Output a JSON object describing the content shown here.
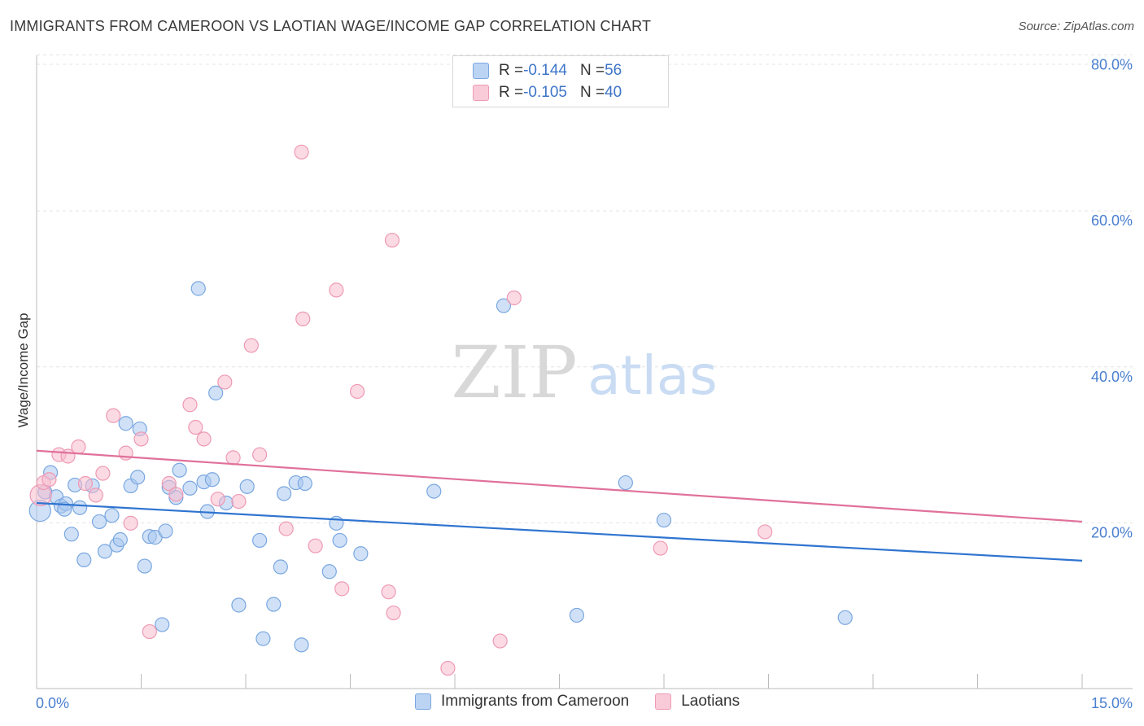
{
  "header": {
    "title": "IMMIGRANTS FROM CAMEROON VS LAOTIAN WAGE/INCOME GAP CORRELATION CHART",
    "source": "Source: ZipAtlas.com"
  },
  "legend": {
    "row1": {
      "r_label": "R = ",
      "r_value": "-0.144",
      "n_label": "N = ",
      "n_value": "56"
    },
    "row2": {
      "r_label": "R = ",
      "r_value": "-0.105",
      "n_label": "N = ",
      "n_value": "40"
    }
  },
  "bottom_legend": {
    "series1": "Immigrants from Cameroon",
    "series2": "Laotians"
  },
  "watermark": {
    "zip": "ZIP",
    "atlas": "atlas"
  },
  "colors": {
    "blue_fill": "#a9c8f0",
    "blue_stroke": "#7aa7e0",
    "blue_line": "#2f74d0",
    "pink_fill": "#f7bccd",
    "pink_stroke": "#ee9ab4",
    "pink_line": "#e0719a",
    "tick_text": "#4a7fcf",
    "grid": "#e4e4e4"
  },
  "chart_data": {
    "type": "scatter",
    "title": "IMMIGRANTS FROM CAMEROON VS LAOTIAN WAGE/INCOME GAP CORRELATION CHART",
    "xlabel": "",
    "ylabel": "Wage/Income Gap",
    "xlim": [
      0,
      15
    ],
    "ylim": [
      0,
      80
    ],
    "x_tick_labels": [
      "0.0%",
      "15.0%"
    ],
    "y_ticks": [
      20,
      40,
      60,
      80
    ],
    "y_tick_labels": [
      "20.0%",
      "40.0%",
      "60.0%",
      "80.0%"
    ],
    "grid": true,
    "series": [
      {
        "name": "Immigrants from Cameroon",
        "color": "#a9c8f0",
        "trend": {
          "x": [
            0,
            15
          ],
          "y": [
            23.8,
            16.4
          ]
        },
        "points": [
          {
            "x": 0.05,
            "y": 22.8,
            "big": true
          },
          {
            "x": 0.12,
            "y": 25.2
          },
          {
            "x": 0.2,
            "y": 27.7
          },
          {
            "x": 0.28,
            "y": 24.6
          },
          {
            "x": 0.35,
            "y": 23.4
          },
          {
            "x": 0.42,
            "y": 23.7
          },
          {
            "x": 0.5,
            "y": 19.8
          },
          {
            "x": 0.55,
            "y": 26.1
          },
          {
            "x": 0.62,
            "y": 23.2
          },
          {
            "x": 0.68,
            "y": 16.5
          },
          {
            "x": 0.8,
            "y": 26.0
          },
          {
            "x": 0.9,
            "y": 21.4
          },
          {
            "x": 0.98,
            "y": 17.6
          },
          {
            "x": 1.08,
            "y": 22.2
          },
          {
            "x": 1.15,
            "y": 18.4
          },
          {
            "x": 1.2,
            "y": 19.1
          },
          {
            "x": 1.28,
            "y": 34.0
          },
          {
            "x": 1.35,
            "y": 26.0
          },
          {
            "x": 1.45,
            "y": 27.1
          },
          {
            "x": 1.48,
            "y": 33.3
          },
          {
            "x": 1.55,
            "y": 15.7
          },
          {
            "x": 1.62,
            "y": 19.5
          },
          {
            "x": 1.7,
            "y": 19.4
          },
          {
            "x": 1.8,
            "y": 8.2
          },
          {
            "x": 1.85,
            "y": 20.2
          },
          {
            "x": 1.9,
            "y": 25.8
          },
          {
            "x": 2.0,
            "y": 24.5
          },
          {
            "x": 2.05,
            "y": 28.0
          },
          {
            "x": 2.2,
            "y": 25.7
          },
          {
            "x": 2.32,
            "y": 51.3
          },
          {
            "x": 2.4,
            "y": 26.5
          },
          {
            "x": 2.45,
            "y": 22.7
          },
          {
            "x": 2.52,
            "y": 26.8
          },
          {
            "x": 2.57,
            "y": 37.9
          },
          {
            "x": 2.72,
            "y": 23.8
          },
          {
            "x": 2.9,
            "y": 10.7
          },
          {
            "x": 3.02,
            "y": 25.9
          },
          {
            "x": 3.2,
            "y": 19.0
          },
          {
            "x": 3.25,
            "y": 6.4
          },
          {
            "x": 3.4,
            "y": 10.8
          },
          {
            "x": 3.5,
            "y": 15.6
          },
          {
            "x": 3.55,
            "y": 25.0
          },
          {
            "x": 3.72,
            "y": 26.4
          },
          {
            "x": 3.8,
            "y": 5.6
          },
          {
            "x": 3.85,
            "y": 26.3
          },
          {
            "x": 4.2,
            "y": 15.0
          },
          {
            "x": 4.3,
            "y": 21.2
          },
          {
            "x": 4.35,
            "y": 19.0
          },
          {
            "x": 4.65,
            "y": 17.3
          },
          {
            "x": 5.7,
            "y": 25.3
          },
          {
            "x": 6.7,
            "y": 49.1
          },
          {
            "x": 7.75,
            "y": 9.4
          },
          {
            "x": 8.45,
            "y": 26.4
          },
          {
            "x": 9.0,
            "y": 21.6
          },
          {
            "x": 11.6,
            "y": 9.1
          },
          {
            "x": 0.4,
            "y": 23.0
          }
        ]
      },
      {
        "name": "Laotians",
        "color": "#f7bccd",
        "trend": {
          "x": [
            0,
            15
          ],
          "y": [
            30.5,
            21.4
          ]
        },
        "points": [
          {
            "x": 0.06,
            "y": 24.8,
            "big": true
          },
          {
            "x": 0.1,
            "y": 26.4
          },
          {
            "x": 0.18,
            "y": 26.8
          },
          {
            "x": 0.32,
            "y": 30.0
          },
          {
            "x": 0.45,
            "y": 29.8
          },
          {
            "x": 0.6,
            "y": 31.0
          },
          {
            "x": 0.7,
            "y": 26.3
          },
          {
            "x": 0.85,
            "y": 24.8
          },
          {
            "x": 0.95,
            "y": 27.6
          },
          {
            "x": 1.1,
            "y": 35.0
          },
          {
            "x": 1.28,
            "y": 30.2
          },
          {
            "x": 1.35,
            "y": 21.2
          },
          {
            "x": 1.5,
            "y": 32.0
          },
          {
            "x": 1.62,
            "y": 7.3
          },
          {
            "x": 1.9,
            "y": 26.3
          },
          {
            "x": 2.0,
            "y": 24.9
          },
          {
            "x": 2.2,
            "y": 36.4
          },
          {
            "x": 2.28,
            "y": 33.5
          },
          {
            "x": 2.4,
            "y": 32.0
          },
          {
            "x": 2.6,
            "y": 24.3
          },
          {
            "x": 2.7,
            "y": 39.3
          },
          {
            "x": 2.82,
            "y": 29.6
          },
          {
            "x": 2.9,
            "y": 24.0
          },
          {
            "x": 3.08,
            "y": 44.0
          },
          {
            "x": 3.2,
            "y": 30.0
          },
          {
            "x": 3.58,
            "y": 20.5
          },
          {
            "x": 3.8,
            "y": 68.8
          },
          {
            "x": 3.82,
            "y": 47.4
          },
          {
            "x": 4.0,
            "y": 18.3
          },
          {
            "x": 4.3,
            "y": 51.1
          },
          {
            "x": 4.38,
            "y": 12.8
          },
          {
            "x": 4.6,
            "y": 38.1
          },
          {
            "x": 5.05,
            "y": 12.4
          },
          {
            "x": 5.12,
            "y": 9.7
          },
          {
            "x": 5.1,
            "y": 57.5
          },
          {
            "x": 5.9,
            "y": 2.6
          },
          {
            "x": 6.65,
            "y": 6.1
          },
          {
            "x": 6.85,
            "y": 50.1
          },
          {
            "x": 8.95,
            "y": 18.0
          },
          {
            "x": 10.45,
            "y": 20.1
          }
        ]
      }
    ]
  }
}
